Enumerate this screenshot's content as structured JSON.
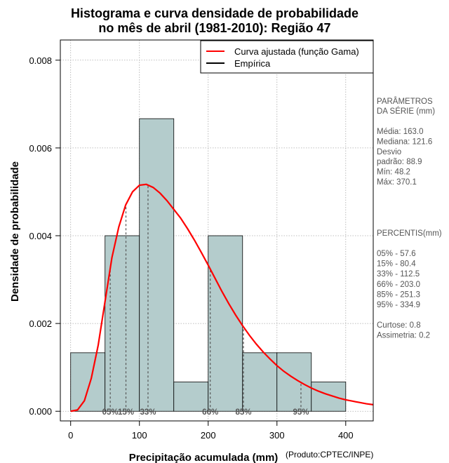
{
  "chart_data": {
    "type": "histogram",
    "title": [
      "Histograma e curva densidade de probabilidade",
      "no mês de abril (1981-2010): Região 47"
    ],
    "xlabel": "Precipitação acumulada (mm)",
    "ylabel": "Densidade de probabilidade",
    "credit": "(Produto:CPTEC/INPE)",
    "xlim": [
      -15,
      440
    ],
    "ylim": [
      -0.00022,
      0.00846
    ],
    "x_ticks": [
      0,
      100,
      200,
      300,
      400
    ],
    "x_tick_labels": [
      "0",
      "100",
      "200",
      "300",
      "400"
    ],
    "y_ticks": [
      0,
      0.002,
      0.004,
      0.006,
      0.008
    ],
    "y_tick_labels": [
      "0.000",
      "0.002",
      "0.004",
      "0.006",
      "0.008"
    ],
    "grid": true,
    "bins": [
      {
        "from": 0,
        "to": 50,
        "density": 0.001333
      },
      {
        "from": 50,
        "to": 100,
        "density": 0.004
      },
      {
        "from": 100,
        "to": 150,
        "density": 0.006667
      },
      {
        "from": 150,
        "to": 200,
        "density": 0.000667
      },
      {
        "from": 200,
        "to": 250,
        "density": 0.004
      },
      {
        "from": 250,
        "to": 300,
        "density": 0.001333
      },
      {
        "from": 300,
        "to": 350,
        "density": 0.001333
      },
      {
        "from": 350,
        "to": 400,
        "density": 0.000667
      }
    ],
    "gamma_curve": {
      "x": [
        0,
        10,
        20,
        30,
        40,
        50,
        60,
        70,
        80,
        90,
        100,
        110,
        120,
        130,
        140,
        150,
        160,
        170,
        180,
        190,
        200,
        210,
        220,
        230,
        240,
        250,
        260,
        270,
        280,
        290,
        300,
        310,
        320,
        330,
        340,
        350,
        360,
        370,
        380,
        390,
        400,
        410,
        420,
        430,
        440
      ],
      "y": [
        0,
        3e-05,
        0.00024,
        0.00075,
        0.0015,
        0.0025,
        0.0035,
        0.0042,
        0.0047,
        0.005,
        0.00515,
        0.00517,
        0.0051,
        0.00497,
        0.0048,
        0.0046,
        0.0044,
        0.00416,
        0.0039,
        0.00362,
        0.00333,
        0.00303,
        0.00273,
        0.00245,
        0.00219,
        0.00195,
        0.00173,
        0.00153,
        0.00135,
        0.00119,
        0.00104,
        0.00091,
        0.0008,
        0.0007,
        0.00061,
        0.00053,
        0.00046,
        0.0004,
        0.00035,
        0.0003,
        0.00026,
        0.00023,
        0.0002,
        0.00017,
        0.00015
      ]
    },
    "percentile_marks": [
      {
        "label": "05%",
        "x": 57.6
      },
      {
        "label": "15%",
        "x": 80.4
      },
      {
        "label": "33%",
        "x": 112.5
      },
      {
        "label": "66%",
        "x": 203.0
      },
      {
        "label": "85%",
        "x": 251.3
      },
      {
        "label": "95%",
        "x": 334.9
      }
    ],
    "legend": {
      "position": "top-right",
      "entries": [
        {
          "label": "Curva ajustada (função Gama)",
          "color": "#ff0000"
        },
        {
          "label": "Empírica",
          "color": "#000000"
        }
      ]
    },
    "colors": {
      "bar_fill": "#b4cccc",
      "curve": "#ff0000",
      "grid": "#aaaaaa",
      "side_text": "#555555"
    },
    "side_panel": {
      "params_heading": [
        "PARÂMETROS",
        " DA SÉRIE (mm)"
      ],
      "params": [
        "Média:  163.0",
        "Mediana:  121.6",
        "Desvio",
        "padrão:  88.9",
        "Mín:  48.2",
        "Máx:  370.1"
      ],
      "percentis_heading": " PERCENTIS(mm)",
      "percentis": [
        "05% -  57.6",
        "15% -  80.4",
        "33% -  112.5",
        "66% -  203.0",
        "85% -  251.3",
        "95% -  334.9"
      ],
      "stats": [
        "Curtose:  0.8",
        "Assimetria:  0.2"
      ]
    }
  }
}
